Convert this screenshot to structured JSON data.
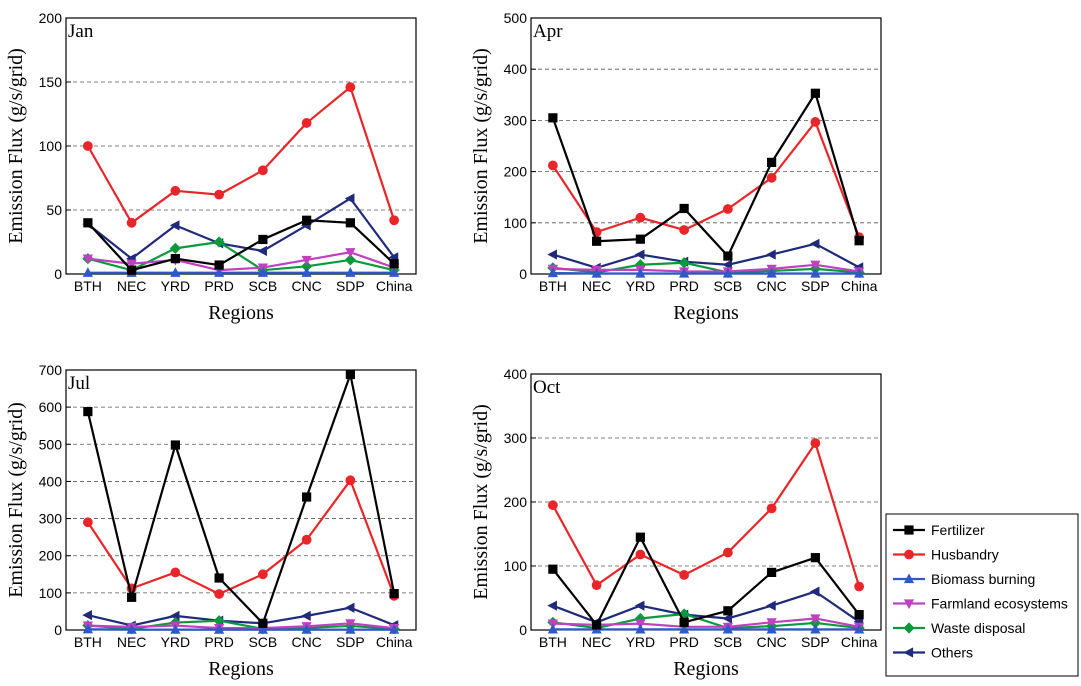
{
  "legend": {
    "placement": "right",
    "entries": [
      {
        "name": "Fertilizer",
        "color": "#000000",
        "marker": "square"
      },
      {
        "name": "Husbandry",
        "color": "#e8262a",
        "marker": "circle"
      },
      {
        "name": "Biomass burning",
        "color": "#2f59c9",
        "marker": "triangle-up"
      },
      {
        "name": "Farmland ecosystems",
        "color": "#c040c0",
        "marker": "triangle-down"
      },
      {
        "name": "Waste disposal",
        "color": "#0a9a3c",
        "marker": "diamond"
      },
      {
        "name": "Others",
        "color": "#1f2a7a",
        "marker": "triangle-left"
      }
    ]
  },
  "chart_data": [
    {
      "type": "line",
      "panel_label": "Jan",
      "xlabel": "Regions",
      "ylabel": "Emission Flux (g/s/grid)",
      "ylim": [
        0,
        200
      ],
      "yticks": [
        0,
        50,
        100,
        150,
        200
      ],
      "grid": true,
      "categories": [
        "BTH",
        "NEC",
        "YRD",
        "PRD",
        "SCB",
        "CNC",
        "SDP",
        "China"
      ],
      "series": [
        {
          "name": "Fertilizer",
          "values": [
            40,
            3,
            12,
            7,
            27,
            42,
            40,
            8
          ]
        },
        {
          "name": "Husbandry",
          "values": [
            100,
            40,
            65,
            62,
            81,
            118,
            146,
            42
          ]
        },
        {
          "name": "Biomass burning",
          "values": [
            1,
            1,
            1,
            1,
            1,
            1,
            1,
            1
          ]
        },
        {
          "name": "Farmland ecosystems",
          "values": [
            12,
            8,
            11,
            3,
            5,
            11,
            17,
            5
          ]
        },
        {
          "name": "Waste disposal",
          "values": [
            12,
            3,
            20,
            25,
            3,
            6,
            11,
            3
          ]
        },
        {
          "name": "Others",
          "values": [
            39,
            12,
            38,
            24,
            18,
            38,
            59,
            13
          ]
        }
      ]
    },
    {
      "type": "line",
      "panel_label": "Apr",
      "xlabel": "Regions",
      "ylabel": "Emission Flux (g/s/grid)",
      "ylim": [
        0,
        500
      ],
      "yticks": [
        0,
        100,
        200,
        300,
        400,
        500
      ],
      "grid": true,
      "categories": [
        "BTH",
        "NEC",
        "YRD",
        "PRD",
        "SCB",
        "CNC",
        "SDP",
        "China"
      ],
      "series": [
        {
          "name": "Fertilizer",
          "values": [
            305,
            64,
            68,
            128,
            35,
            218,
            353,
            65
          ]
        },
        {
          "name": "Husbandry",
          "values": [
            212,
            82,
            110,
            86,
            127,
            188,
            297,
            72
          ]
        },
        {
          "name": "Biomass burning",
          "values": [
            2,
            1,
            1,
            1,
            1,
            1,
            1,
            1
          ]
        },
        {
          "name": "Farmland ecosystems",
          "values": [
            10,
            8,
            8,
            5,
            5,
            10,
            18,
            5
          ]
        },
        {
          "name": "Waste disposal",
          "values": [
            12,
            3,
            18,
            22,
            3,
            6,
            10,
            3
          ]
        },
        {
          "name": "Others",
          "values": [
            38,
            12,
            38,
            24,
            18,
            38,
            59,
            13
          ]
        }
      ]
    },
    {
      "type": "line",
      "panel_label": "Jul",
      "xlabel": "Regions",
      "ylabel": "Emission Flux (g/s/grid)",
      "ylim": [
        0,
        700
      ],
      "yticks": [
        0,
        100,
        200,
        300,
        400,
        500,
        600,
        700
      ],
      "grid": true,
      "categories": [
        "BTH",
        "NEC",
        "YRD",
        "PRD",
        "SCB",
        "CNC",
        "SDP",
        "China"
      ],
      "series": [
        {
          "name": "Fertilizer",
          "values": [
            588,
            88,
            498,
            140,
            18,
            358,
            688,
            98
          ]
        },
        {
          "name": "Husbandry",
          "values": [
            290,
            112,
            155,
            97,
            150,
            243,
            403,
            92
          ]
        },
        {
          "name": "Biomass burning",
          "values": [
            2,
            1,
            1,
            1,
            1,
            1,
            1,
            1
          ]
        },
        {
          "name": "Farmland ecosystems",
          "values": [
            12,
            8,
            12,
            5,
            5,
            10,
            18,
            5
          ]
        },
        {
          "name": "Waste disposal",
          "values": [
            12,
            3,
            20,
            25,
            3,
            6,
            11,
            3
          ]
        },
        {
          "name": "Others",
          "values": [
            40,
            12,
            38,
            25,
            18,
            38,
            60,
            13
          ]
        }
      ]
    },
    {
      "type": "line",
      "panel_label": "Oct",
      "xlabel": "Regions",
      "ylabel": "Emission Flux (g/s/grid)",
      "ylim": [
        0,
        400
      ],
      "yticks": [
        0,
        100,
        200,
        300,
        400
      ],
      "grid": true,
      "categories": [
        "BTH",
        "NEC",
        "YRD",
        "PRD",
        "SCB",
        "CNC",
        "SDP",
        "China"
      ],
      "series": [
        {
          "name": "Fertilizer",
          "values": [
            95,
            8,
            145,
            12,
            30,
            90,
            113,
            24
          ]
        },
        {
          "name": "Husbandry",
          "values": [
            195,
            70,
            118,
            86,
            121,
            190,
            292,
            68
          ]
        },
        {
          "name": "Biomass burning",
          "values": [
            1,
            1,
            1,
            1,
            1,
            1,
            1,
            1
          ]
        },
        {
          "name": "Farmland ecosystems",
          "values": [
            10,
            8,
            10,
            5,
            5,
            12,
            18,
            5
          ]
        },
        {
          "name": "Waste disposal",
          "values": [
            12,
            3,
            18,
            25,
            3,
            6,
            11,
            3
          ]
        },
        {
          "name": "Others",
          "values": [
            38,
            12,
            38,
            24,
            18,
            38,
            60,
            13
          ]
        }
      ]
    }
  ]
}
